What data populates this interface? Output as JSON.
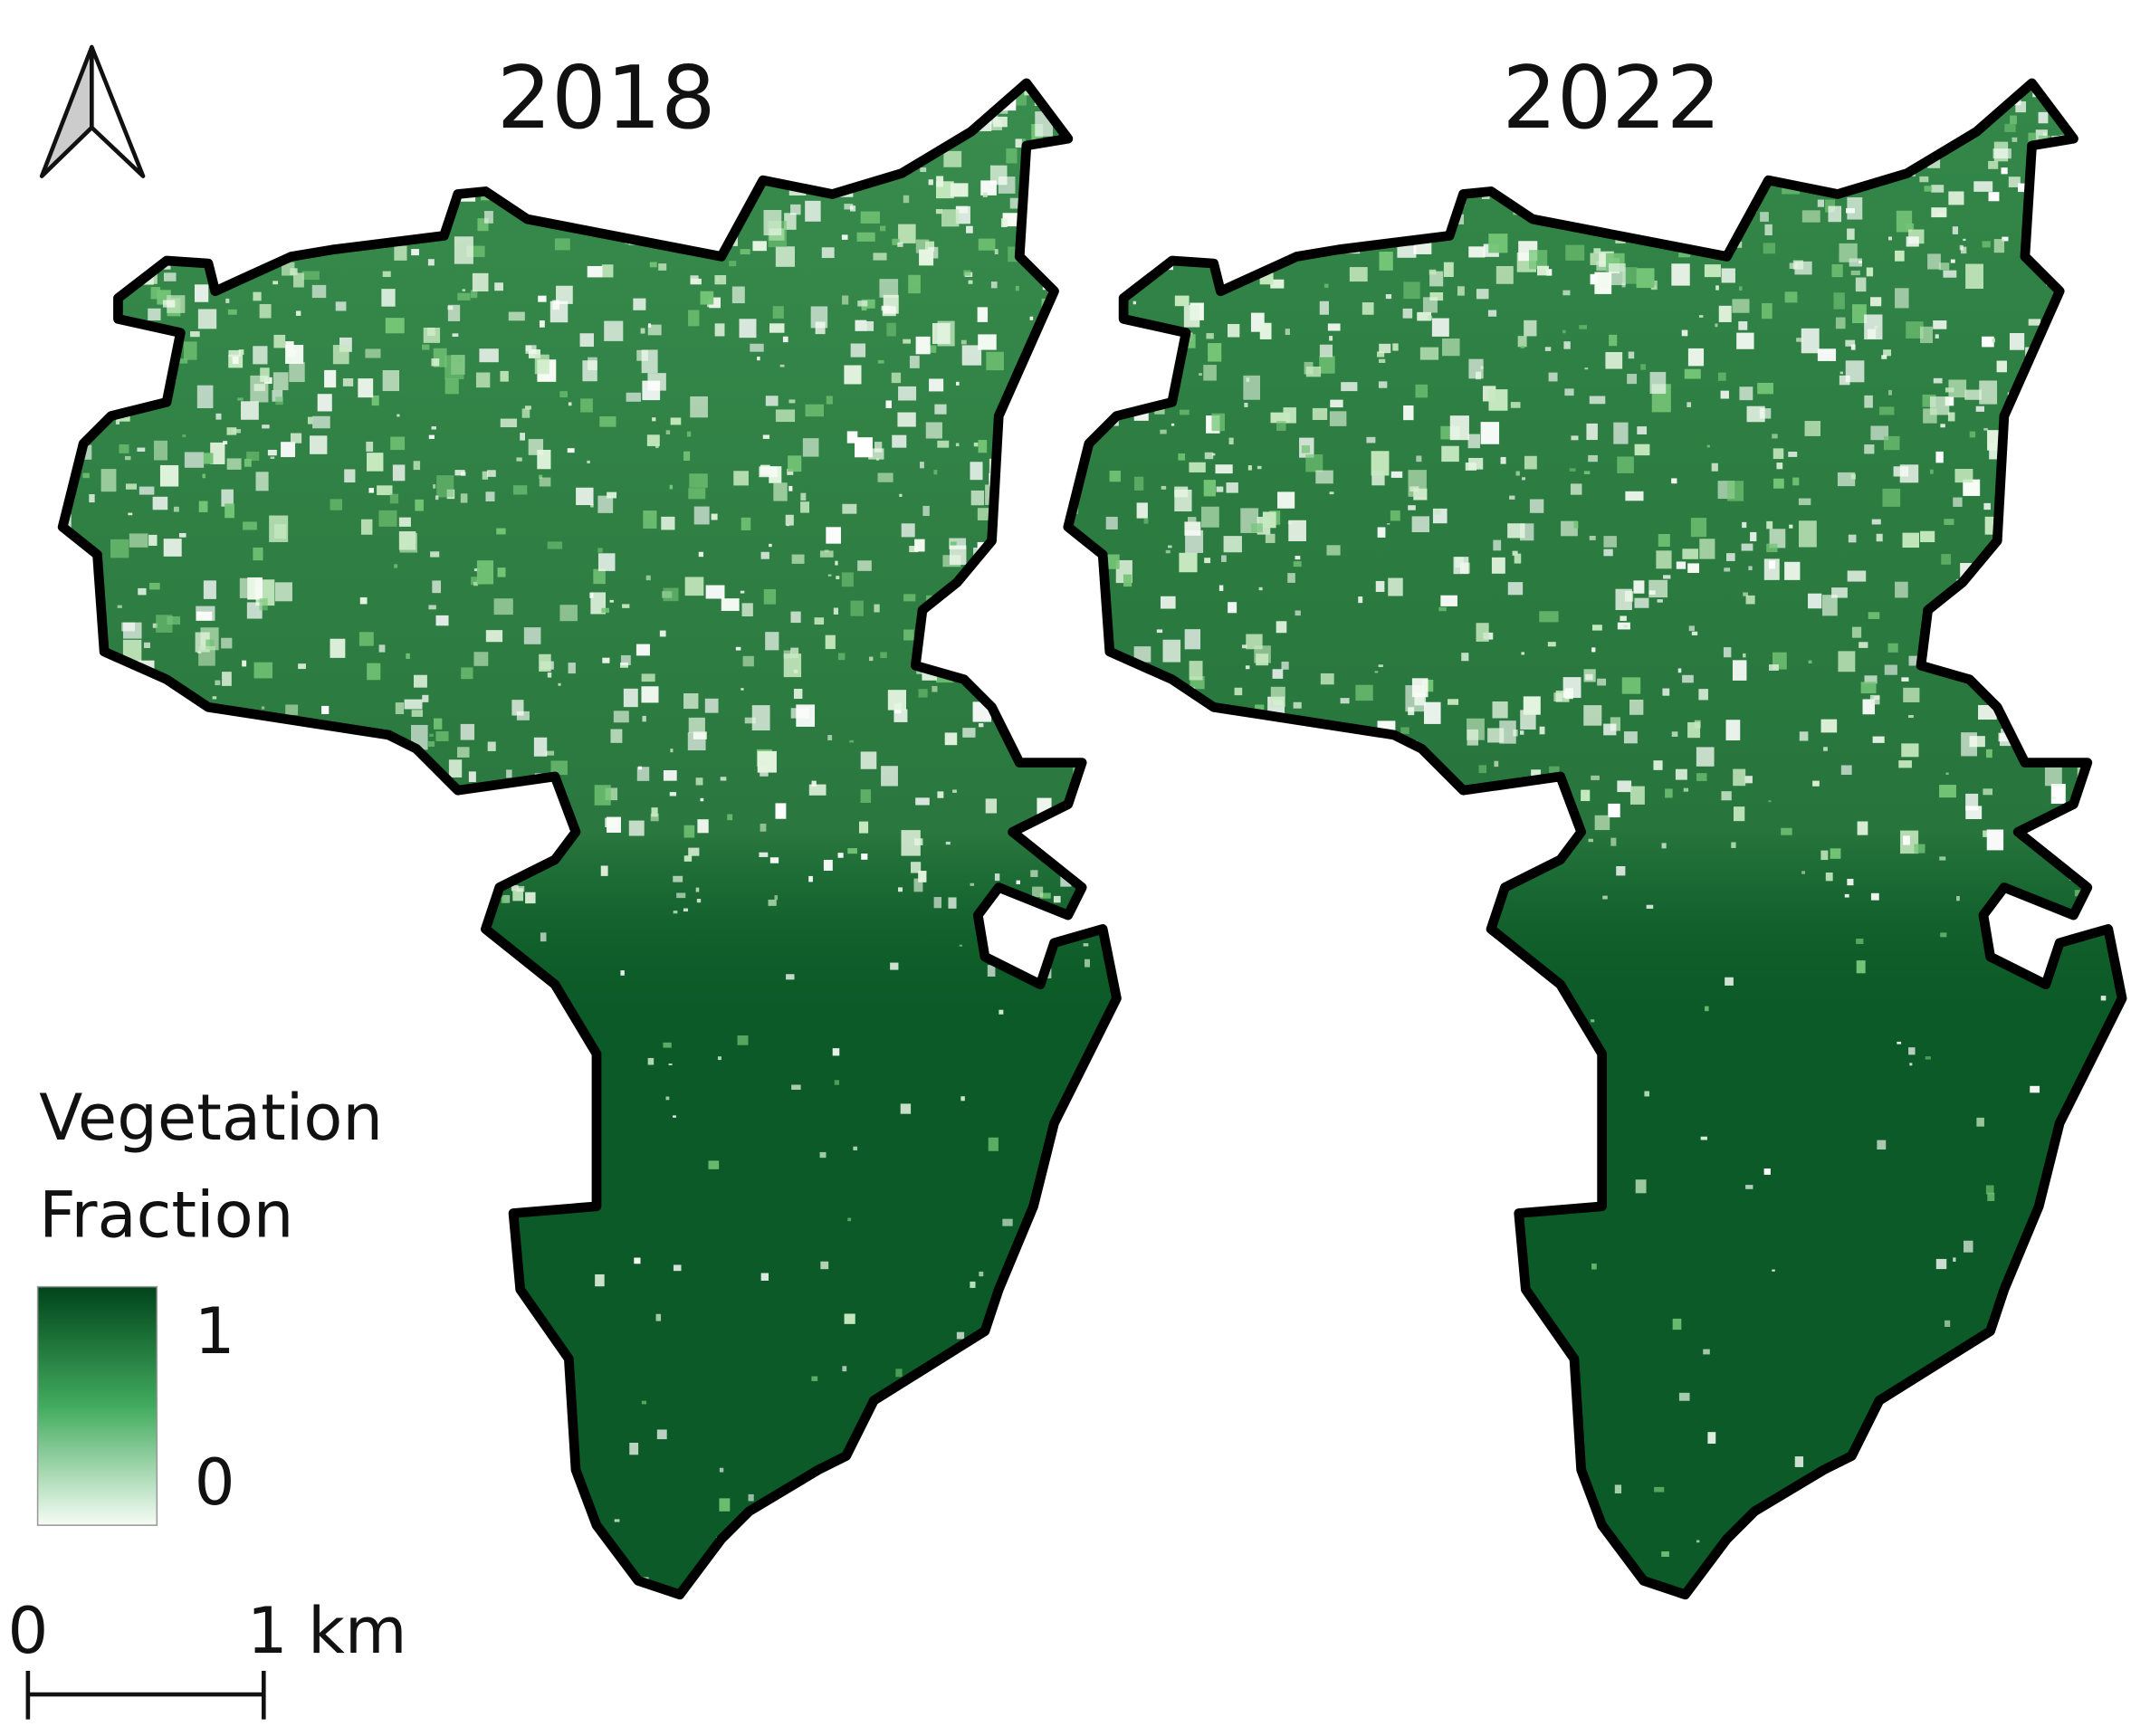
{
  "maps": [
    {
      "title": "2018"
    },
    {
      "title": "2022"
    }
  ],
  "legend": {
    "title_lines": [
      "Vegetation",
      "Fraction"
    ],
    "max_label": "1",
    "min_label": "0"
  },
  "scale_bar": {
    "start_label": "0",
    "end_label": "1 km"
  }
}
